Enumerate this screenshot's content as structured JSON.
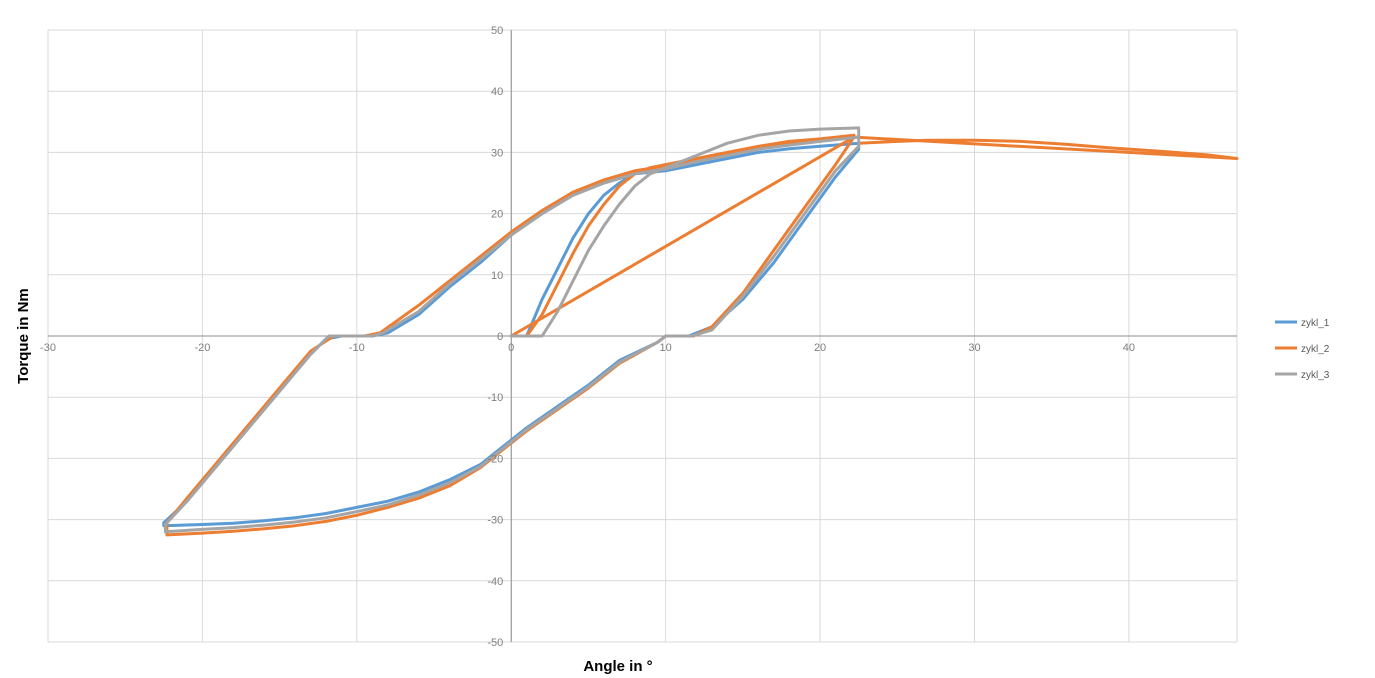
{
  "chart_data": {
    "type": "scatter",
    "title": "",
    "xlabel": "Angle in °",
    "ylabel": "Torque in Nm",
    "xlim": [
      -30,
      47
    ],
    "ylim": [
      -50,
      50
    ],
    "xticks": [
      -30,
      -20,
      -10,
      0,
      10,
      20,
      30,
      40
    ],
    "yticks": [
      50,
      40,
      30,
      20,
      10,
      0,
      -10,
      -20,
      -30,
      -40,
      -50
    ],
    "grid": true,
    "legend": "right",
    "series": [
      {
        "name": "zykl_1",
        "color": "#5b9bd5",
        "x": [
          0,
          1,
          2,
          3,
          4,
          5,
          6,
          7,
          8,
          9,
          10,
          12,
          14,
          16,
          18,
          20,
          22.5,
          22.5,
          21,
          19,
          17,
          15,
          13,
          11.5,
          11,
          10,
          9.5,
          7,
          5,
          3,
          1,
          0,
          -2,
          -4,
          -6,
          -8,
          -10,
          -12,
          -14,
          -16,
          -18,
          -20,
          -22.5,
          -22.5,
          -21,
          -19,
          -17,
          -15,
          -13,
          -12,
          -11,
          -10,
          -9,
          -8,
          -6,
          -4,
          -2,
          0,
          2,
          4,
          6,
          8,
          10,
          12,
          14,
          16,
          18,
          20,
          22.5
        ],
        "y": [
          0,
          0,
          6,
          11,
          16,
          20,
          23,
          25,
          26.5,
          27,
          27,
          28,
          29,
          30,
          30.6,
          31,
          31.5,
          30.5,
          26,
          19,
          12,
          6,
          1.5,
          0,
          0,
          0,
          -1,
          -4,
          -8,
          -11.5,
          -15,
          -17,
          -21,
          -23.5,
          -25.5,
          -27,
          -28,
          -29,
          -29.7,
          -30.2,
          -30.6,
          -30.8,
          -31,
          -30.5,
          -27,
          -21,
          -15,
          -9,
          -3,
          -0.5,
          0,
          0,
          0,
          0.5,
          3.5,
          8,
          12,
          16.5,
          20,
          23,
          25,
          26.5,
          27,
          28,
          29,
          30,
          30.6,
          31,
          31.5
        ]
      },
      {
        "name": "zykl_2",
        "color": "#ed7d31",
        "x": [
          22.5,
          25,
          27,
          30,
          33,
          36,
          39,
          42,
          45,
          47,
          22.2,
          21,
          19,
          17,
          15,
          13,
          11.8,
          11.2,
          10,
          9.5,
          7,
          5,
          3,
          1,
          0,
          -2,
          -4,
          -6,
          -8,
          -10,
          -12,
          -14,
          -16,
          -18,
          -20,
          -22.3,
          -22.3,
          -21,
          -19,
          -17,
          -15,
          -13,
          -11.5,
          -10.5,
          -9.5,
          -8.5,
          -6,
          -4,
          -2,
          0,
          2,
          4,
          6,
          8,
          10,
          12,
          14,
          16,
          18,
          20,
          22.2,
          0,
          0.5,
          1,
          2,
          3,
          4,
          5,
          6,
          7,
          8,
          9,
          10,
          12,
          14,
          16,
          18,
          20,
          22.2
        ],
        "y": [
          31.5,
          31.8,
          32,
          32,
          31.8,
          31.3,
          30.7,
          30.2,
          29.6,
          29,
          32.5,
          28,
          21,
          14,
          7,
          1.5,
          0,
          0,
          0,
          -1,
          -4.5,
          -8.5,
          -12,
          -15.5,
          -17.5,
          -21.5,
          -24.5,
          -26.5,
          -28,
          -29.3,
          -30.3,
          -31,
          -31.5,
          -31.9,
          -32.2,
          -32.5,
          -30.5,
          -26.5,
          -20.5,
          -14.5,
          -8.5,
          -2.5,
          0,
          0,
          0,
          0.5,
          5,
          9,
          13,
          17,
          20.5,
          23.5,
          25.5,
          27,
          27.8,
          28.8,
          29.8,
          30.8,
          31.5,
          32,
          32.5,
          0,
          0,
          0,
          3.5,
          8.5,
          13.5,
          18,
          21.5,
          24.5,
          26.5,
          27.5,
          28,
          29,
          30,
          31,
          31.8,
          32.2,
          32.8
        ]
      },
      {
        "name": "zykl_3",
        "color": "#a5a5a5",
        "x": [
          0,
          1,
          2,
          3,
          4,
          5,
          6,
          7,
          8,
          9,
          10,
          12,
          14,
          16,
          18,
          20,
          22.5,
          22.5,
          21,
          19,
          17,
          15,
          13,
          11.7,
          11,
          10,
          9.5,
          7,
          5,
          3,
          1,
          0,
          -2,
          -4,
          -6,
          -8,
          -10,
          -12,
          -14,
          -16,
          -18,
          -20,
          -22.4,
          -22.4,
          -21,
          -19,
          -17,
          -15,
          -13,
          -11.8,
          -11,
          -10,
          -9,
          -8.3,
          -6,
          -4,
          -2,
          0,
          2,
          4,
          6,
          8,
          10,
          12,
          14,
          16,
          18,
          20,
          22.5
        ],
        "y": [
          0,
          0,
          0,
          4,
          9,
          14,
          18,
          21.5,
          24.5,
          26.5,
          27.5,
          29.5,
          31.5,
          32.8,
          33.5,
          33.8,
          34,
          31,
          27,
          20,
          13,
          6.5,
          1,
          0,
          0,
          0,
          -1,
          -4.3,
          -8.3,
          -11.8,
          -15.3,
          -17.3,
          -21.3,
          -24,
          -26,
          -27.6,
          -28.7,
          -29.7,
          -30.4,
          -30.9,
          -31.3,
          -31.6,
          -32,
          -30.8,
          -27,
          -21,
          -15,
          -9,
          -3,
          0,
          0,
          0,
          0,
          0.5,
          4,
          8.5,
          12.5,
          16.5,
          20,
          23,
          25,
          26.5,
          27.3,
          28.5,
          29.5,
          30.5,
          31.2,
          31.8,
          32.5
        ]
      }
    ]
  }
}
